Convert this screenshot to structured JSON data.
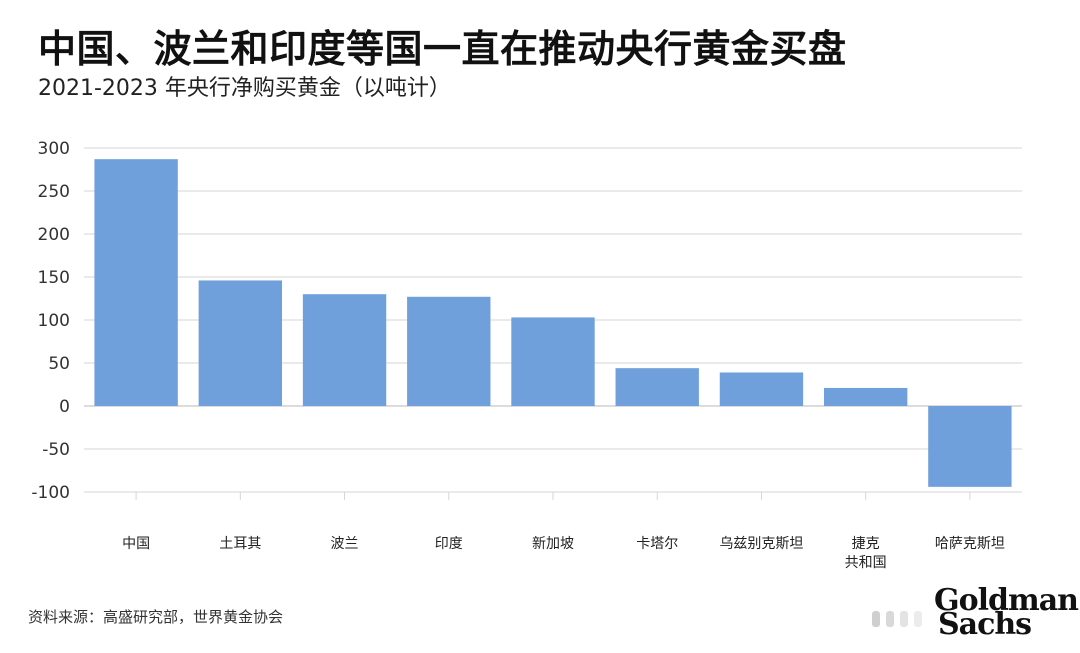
{
  "header": {
    "title": "中国、波兰和印度等国一直在推动央行黄金买盘",
    "subtitle": "2021-2023 年央行净购买黄金（以吨计）"
  },
  "footer": {
    "source": "资料来源：高盛研究部，世界黄金协会",
    "logo_line1": "Goldman",
    "logo_line2": "Sachs"
  },
  "colors": {
    "bar": "#6fa0db",
    "grid": "#d6d6d6",
    "axis": "#999999"
  },
  "chart_data": {
    "type": "bar",
    "title": "中国、波兰和印度等国一直在推动央行黄金买盘",
    "subtitle": "2021-2023 年央行净购买黄金（以吨计）",
    "xlabel": "",
    "ylabel": "",
    "ylim": [
      -100,
      300
    ],
    "yticks": [
      300,
      250,
      200,
      150,
      100,
      50,
      0,
      -50,
      -100
    ],
    "ytick_labels": [
      "300",
      "250",
      "200",
      "150",
      "100",
      "50",
      "0",
      "-50",
      "-100"
    ],
    "grid": true,
    "legend": "none",
    "categories": [
      "中国",
      "土耳其",
      "波兰",
      "印度",
      "新加坡",
      "卡塔尔",
      "乌兹别克斯坦",
      "捷克共和国",
      "哈萨克斯坦"
    ],
    "category_labels": [
      [
        "中国"
      ],
      [
        "土耳其"
      ],
      [
        "波兰"
      ],
      [
        "印度"
      ],
      [
        "新加坡"
      ],
      [
        "卡塔尔"
      ],
      [
        "乌兹别克斯坦"
      ],
      [
        "捷克",
        "共和国"
      ],
      [
        "哈萨克斯坦"
      ]
    ],
    "values": [
      287,
      146,
      130,
      127,
      103,
      44,
      39,
      21,
      -94
    ]
  }
}
